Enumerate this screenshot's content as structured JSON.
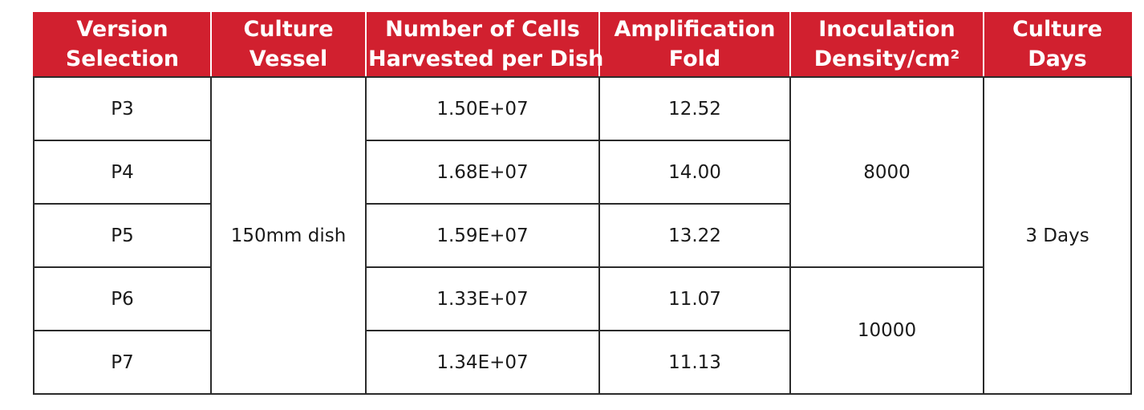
{
  "table": {
    "headers": [
      [
        "Version",
        "Selection"
      ],
      [
        "Culture",
        "Vessel"
      ],
      [
        "Number of Cells",
        "Harvested per Dish"
      ],
      [
        "Amplification",
        "Fold"
      ],
      [
        "Inoculation",
        "Density/cm²"
      ],
      [
        "Culture",
        "Days"
      ]
    ],
    "versions": [
      "P3",
      "P4",
      "P5",
      "P6",
      "P7"
    ],
    "culture_vessel": "150mm dish",
    "cells_harvested": [
      "1.50E+07",
      "1.68E+07",
      "1.59E+07",
      "1.33E+07",
      "1.34E+07"
    ],
    "amplification_fold": [
      "12.52",
      "14.00",
      "13.22",
      "11.07",
      "11.13"
    ],
    "inoculation_density": [
      "8000",
      "10000"
    ],
    "culture_days": "3 Days"
  },
  "colors": {
    "header_background": "#d1202f",
    "header_text": "#ffffff",
    "border": "#2b2b2b",
    "cell_text": "#1a1a1a"
  }
}
